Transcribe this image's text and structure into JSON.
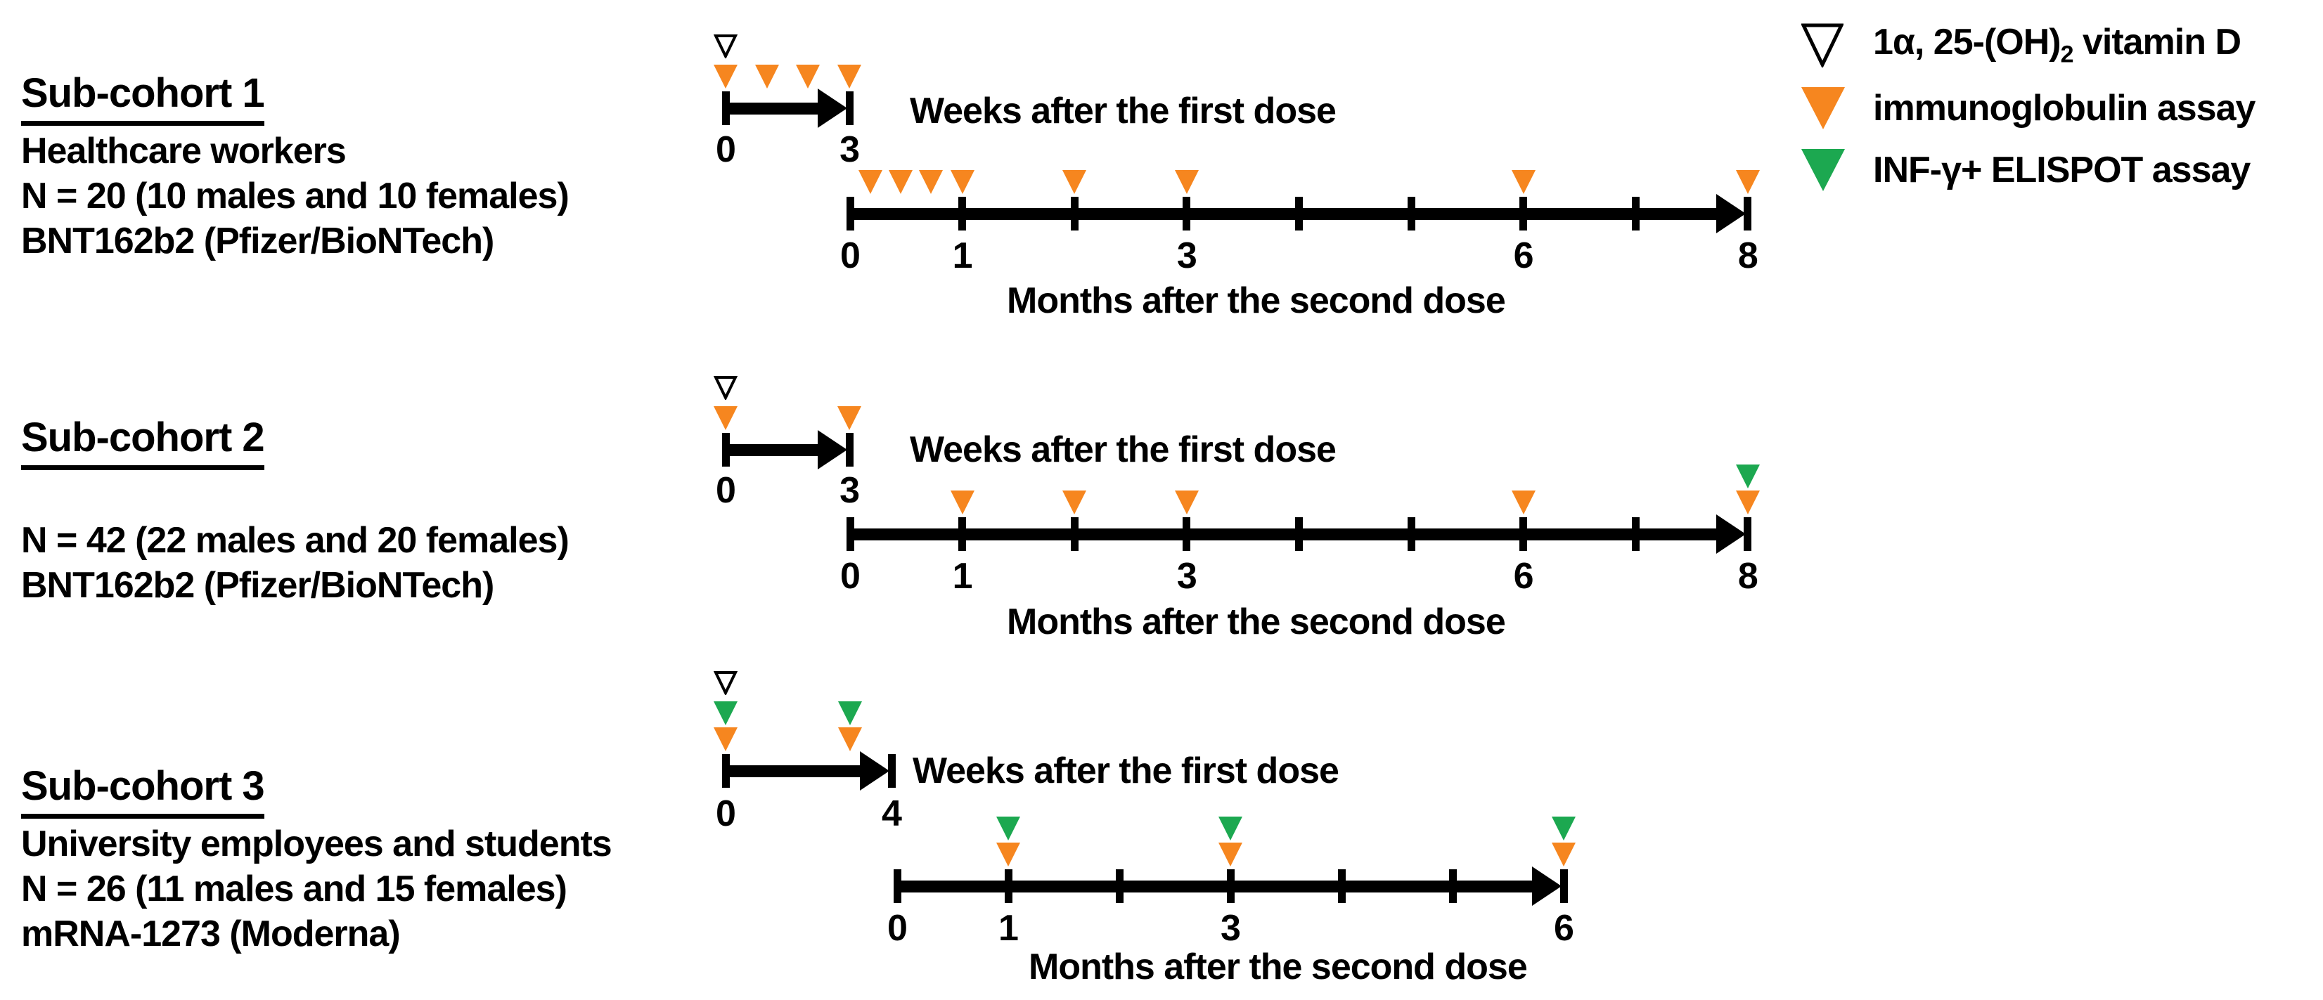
{
  "figure": {
    "colors": {
      "orange": "#F6861F",
      "green": "#1CA850",
      "black": "#000000",
      "white": "#FFFFFF"
    },
    "marker_styles": {
      "vitamin-d": {
        "fill": "#FFFFFF",
        "stroke": "#000000"
      },
      "immunoglobulin": {
        "fill": "#F6861F",
        "stroke": "none"
      },
      "elispot": {
        "fill": "#1CA850",
        "stroke": "none"
      }
    },
    "legend": {
      "items": [
        {
          "type": "vitamin-d",
          "label": {
            "prefix": "1α, 25-(OH)",
            "sub": "2",
            "suffix": " vitamin D"
          }
        },
        {
          "type": "immunoglobulin",
          "label": "immunoglobulin assay"
        },
        {
          "type": "elispot",
          "label": "INF-γ+ ELISPOT assay"
        }
      ]
    },
    "cohorts": [
      {
        "title": "Sub-cohort 1",
        "lines": [
          "Healthcare workers",
          "N = 20 (10 males and 10 females)",
          "BNT162b2 (Pfizer/BioNTech)"
        ],
        "weeks_axis": {
          "title": "Weeks after the first dose",
          "arrow_end": 3,
          "ticks": [
            0,
            3
          ],
          "tick_labels": [
            {
              "at": 0,
              "text": "0"
            },
            {
              "at": 3,
              "text": "3"
            }
          ],
          "markers": [
            {
              "at": 0,
              "types": [
                "vitamin-d",
                "immunoglobulin"
              ]
            },
            {
              "at": 1,
              "types": [
                "immunoglobulin"
              ]
            },
            {
              "at": 2,
              "types": [
                "immunoglobulin"
              ]
            },
            {
              "at": 3,
              "types": [
                "immunoglobulin"
              ]
            }
          ]
        },
        "months_axis": {
          "title": "Months after the second dose",
          "arrow_end": 8,
          "ticks": [
            0,
            1,
            2,
            3,
            4,
            5,
            6,
            7,
            8
          ],
          "tick_labels": [
            {
              "at": 0,
              "text": "0"
            },
            {
              "at": 1,
              "text": "1"
            },
            {
              "at": 3,
              "text": "3"
            },
            {
              "at": 6,
              "text": "6"
            },
            {
              "at": 8,
              "text": "8"
            }
          ],
          "markers": [
            {
              "at": 0.18,
              "types": [
                "immunoglobulin"
              ]
            },
            {
              "at": 0.45,
              "types": [
                "immunoglobulin"
              ]
            },
            {
              "at": 0.72,
              "types": [
                "immunoglobulin"
              ]
            },
            {
              "at": 1,
              "types": [
                "immunoglobulin"
              ]
            },
            {
              "at": 2,
              "types": [
                "immunoglobulin"
              ]
            },
            {
              "at": 3,
              "types": [
                "immunoglobulin"
              ]
            },
            {
              "at": 6,
              "types": [
                "immunoglobulin"
              ]
            },
            {
              "at": 8,
              "types": [
                "immunoglobulin"
              ]
            }
          ]
        }
      },
      {
        "title": "Sub-cohort 2",
        "lines": [
          "",
          "N = 42 (22 males and 20 females)",
          "BNT162b2 (Pfizer/BioNTech)"
        ],
        "weeks_axis": {
          "title": "Weeks after the first dose",
          "arrow_end": 3,
          "ticks": [
            0,
            3
          ],
          "tick_labels": [
            {
              "at": 0,
              "text": "0"
            },
            {
              "at": 3,
              "text": "3"
            }
          ],
          "markers": [
            {
              "at": 0,
              "types": [
                "vitamin-d",
                "immunoglobulin"
              ]
            },
            {
              "at": 3,
              "types": [
                "immunoglobulin"
              ]
            }
          ]
        },
        "months_axis": {
          "title": "Months after the second dose",
          "arrow_end": 8,
          "ticks": [
            0,
            1,
            2,
            3,
            4,
            5,
            6,
            7,
            8
          ],
          "tick_labels": [
            {
              "at": 0,
              "text": "0"
            },
            {
              "at": 1,
              "text": "1"
            },
            {
              "at": 3,
              "text": "3"
            },
            {
              "at": 6,
              "text": "6"
            },
            {
              "at": 8,
              "text": "8"
            }
          ],
          "markers": [
            {
              "at": 1,
              "types": [
                "immunoglobulin"
              ]
            },
            {
              "at": 2,
              "types": [
                "immunoglobulin"
              ]
            },
            {
              "at": 3,
              "types": [
                "immunoglobulin"
              ]
            },
            {
              "at": 6,
              "types": [
                "immunoglobulin"
              ]
            },
            {
              "at": 8,
              "types": [
                "elispot",
                "immunoglobulin"
              ]
            }
          ]
        }
      },
      {
        "title": "Sub-cohort 3",
        "lines": [
          "University employees and students",
          "N = 26 (11 males and 15 females)",
          "mRNA-1273 (Moderna)"
        ],
        "weeks_axis": {
          "title": "Weeks after the first dose",
          "arrow_end": 4,
          "ticks": [
            0,
            4
          ],
          "tick_labels": [
            {
              "at": 0,
              "text": "0"
            },
            {
              "at": 4,
              "text": "4"
            }
          ],
          "markers": [
            {
              "at": 0,
              "types": [
                "vitamin-d",
                "elispot",
                "immunoglobulin"
              ]
            },
            {
              "at": 3,
              "types": [
                "elispot",
                "immunoglobulin"
              ]
            }
          ]
        },
        "months_axis": {
          "title": "Months after the second dose",
          "arrow_end": 6,
          "ticks": [
            0,
            1,
            2,
            3,
            4,
            5,
            6
          ],
          "tick_labels": [
            {
              "at": 0,
              "text": "0"
            },
            {
              "at": 1,
              "text": "1"
            },
            {
              "at": 3,
              "text": "3"
            },
            {
              "at": 6,
              "text": "6"
            }
          ],
          "markers": [
            {
              "at": 1,
              "types": [
                "elispot",
                "immunoglobulin"
              ]
            },
            {
              "at": 3,
              "types": [
                "elispot",
                "immunoglobulin"
              ]
            },
            {
              "at": 6,
              "types": [
                "elispot",
                "immunoglobulin"
              ]
            }
          ]
        }
      }
    ]
  }
}
